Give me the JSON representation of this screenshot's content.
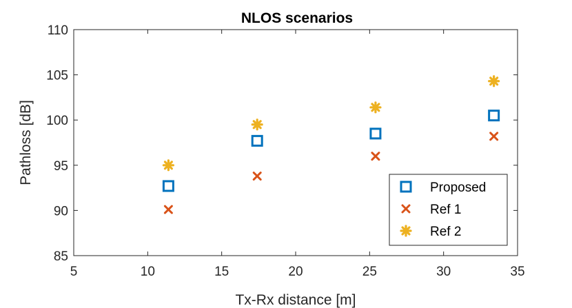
{
  "chart_data": {
    "type": "scatter",
    "title": "NLOS scenarios",
    "xlabel": "Tx-Rx distance [m]",
    "ylabel": "Pathloss [dB]",
    "xlim": [
      5,
      35
    ],
    "ylim": [
      85,
      110
    ],
    "xticks": [
      5,
      10,
      15,
      20,
      25,
      30,
      35
    ],
    "yticks": [
      85,
      90,
      95,
      100,
      105,
      110
    ],
    "grid": false,
    "legend_position": "bottom-right",
    "series": [
      {
        "name": "Proposed",
        "marker": "square",
        "color": "#0072BD",
        "x": [
          11.4,
          17.4,
          25.4,
          33.4
        ],
        "y": [
          92.7,
          97.7,
          98.5,
          100.5
        ]
      },
      {
        "name": "Ref 1",
        "marker": "x",
        "color": "#D95319",
        "x": [
          11.4,
          17.4,
          25.4,
          33.4
        ],
        "y": [
          90.1,
          93.8,
          96.0,
          98.2
        ]
      },
      {
        "name": "Ref 2",
        "marker": "asterisk",
        "color": "#EDB120",
        "x": [
          11.4,
          17.4,
          25.4,
          33.4
        ],
        "y": [
          95.0,
          99.5,
          101.4,
          104.3
        ]
      }
    ]
  }
}
